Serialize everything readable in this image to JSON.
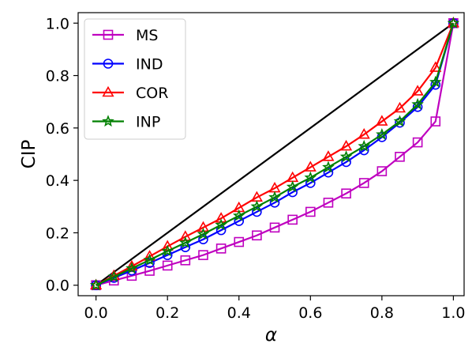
{
  "chart_data": {
    "type": "line",
    "xlabel": "α",
    "ylabel": "CIP",
    "xlim": [
      -0.05,
      1.03
    ],
    "ylim": [
      -0.04,
      1.04
    ],
    "xticks": [
      "0.0",
      "0.2",
      "0.4",
      "0.6",
      "0.8",
      "1.0"
    ],
    "yticks": [
      "0.0",
      "0.2",
      "0.4",
      "0.6",
      "0.8",
      "1.0"
    ],
    "xtick_values": [
      0,
      0.2,
      0.4,
      0.6,
      0.8,
      1.0
    ],
    "ytick_values": [
      0,
      0.2,
      0.4,
      0.6,
      0.8,
      1.0
    ],
    "legend_position": "top-left",
    "grid": false,
    "x": [
      0,
      0.05,
      0.1,
      0.15,
      0.2,
      0.25,
      0.3,
      0.35,
      0.4,
      0.45,
      0.5,
      0.55,
      0.6,
      0.65,
      0.7,
      0.75,
      0.8,
      0.85,
      0.9,
      0.95,
      1.0
    ],
    "reference_line": {
      "x": [
        0,
        1
      ],
      "y": [
        0,
        1
      ],
      "color": "#000000"
    },
    "series": [
      {
        "name": "MS",
        "color": "#bf00bf",
        "marker": "square",
        "values": [
          0.0,
          0.018,
          0.036,
          0.055,
          0.075,
          0.095,
          0.115,
          0.14,
          0.165,
          0.19,
          0.22,
          0.25,
          0.28,
          0.315,
          0.35,
          0.39,
          0.435,
          0.49,
          0.545,
          0.625,
          1.0
        ]
      },
      {
        "name": "IND",
        "color": "#0000ff",
        "marker": "circle",
        "values": [
          0.0,
          0.028,
          0.056,
          0.085,
          0.115,
          0.145,
          0.175,
          0.21,
          0.245,
          0.28,
          0.315,
          0.355,
          0.39,
          0.43,
          0.47,
          0.515,
          0.565,
          0.62,
          0.68,
          0.765,
          1.0
        ]
      },
      {
        "name": "COR",
        "color": "#ff0000",
        "marker": "triangle",
        "values": [
          0.0,
          0.036,
          0.072,
          0.11,
          0.148,
          0.185,
          0.22,
          0.255,
          0.295,
          0.335,
          0.37,
          0.41,
          0.45,
          0.49,
          0.53,
          0.575,
          0.625,
          0.675,
          0.74,
          0.83,
          1.0
        ]
      },
      {
        "name": "INP",
        "color": "#008000",
        "marker": "star",
        "values": [
          0.0,
          0.032,
          0.064,
          0.096,
          0.13,
          0.162,
          0.195,
          0.23,
          0.265,
          0.3,
          0.335,
          0.375,
          0.41,
          0.45,
          0.49,
          0.53,
          0.575,
          0.625,
          0.69,
          0.775,
          1.0
        ]
      }
    ]
  }
}
